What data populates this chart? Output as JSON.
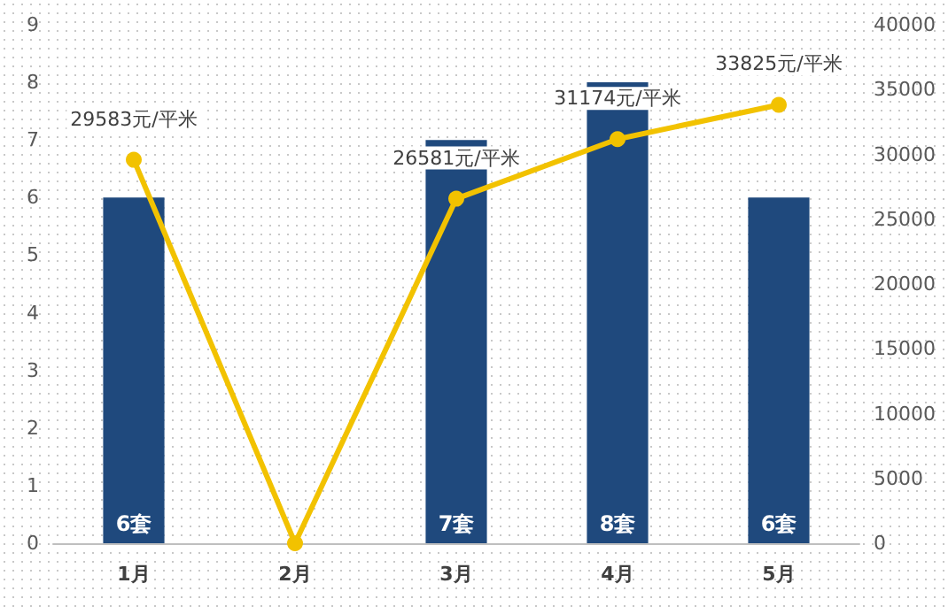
{
  "chart_data": {
    "type": "bar",
    "categories": [
      "1月",
      "2月",
      "3月",
      "4月",
      "5月"
    ],
    "series": [
      {
        "color": "#1f497d",
        "values": [
          6,
          0,
          7,
          8,
          6
        ],
        "value_labels": [
          "6套",
          null,
          "7套",
          "8套",
          "6套"
        ]
      },
      {
        "type": "line",
        "axis": "y2",
        "color": "#f2c200",
        "values": [
          29583,
          0,
          26581,
          31174,
          33825
        ],
        "value_labels": [
          "29583元/平米",
          null,
          "26581元/平米",
          "31174元/平米",
          "33825元/平米"
        ]
      }
    ],
    "ylim": [
      0,
      9
    ],
    "yticks": [
      0,
      1,
      2,
      3,
      4,
      5,
      6,
      7,
      8,
      9
    ],
    "y2lim": [
      0,
      40000
    ],
    "y2ticks": [
      0,
      5000,
      10000,
      15000,
      20000,
      25000,
      30000,
      35000,
      40000
    ],
    "marker": "circle",
    "line_style": "solid",
    "grid": false
  }
}
